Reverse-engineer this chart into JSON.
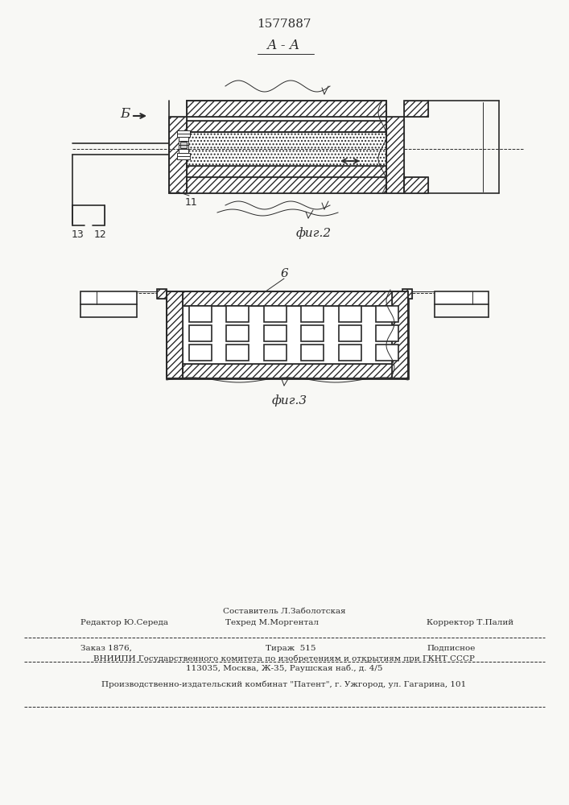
{
  "patent_number": "1577887",
  "fig2_label": "А - А",
  "fig2_caption": "фиг.2",
  "fig3_caption": "фиг.3",
  "label_b": "Б",
  "label_6": "6",
  "label_11": "11",
  "label_12": "12",
  "label_13": "13",
  "bottom_text_col1_line1": "Составитель Л.Заболотская",
  "bottom_text_col1_line2": "Техред М.Моргентал",
  "bottom_text_left": "Редактор Ю.Середа",
  "bottom_text_right": "Корректор Т.Палий",
  "bottom_order": "Заказ 1876,",
  "bottom_tirazh": "Тираж  515",
  "bottom_podp": "Подписное",
  "bottom_vniipи": "ВНИИПИ Государственного комитета по изобретениям и открытиям при ГКНТ СССР",
  "bottom_addr": "113035, Москва, Ж-35, Раушская наб., д. 4/5",
  "bottom_patent": "Производственно-издательский комбинат \"Патент\", г. Ужгород, ул. Гагарина, 101",
  "bg_color": "#f8f8f5",
  "line_color": "#2a2a2a"
}
